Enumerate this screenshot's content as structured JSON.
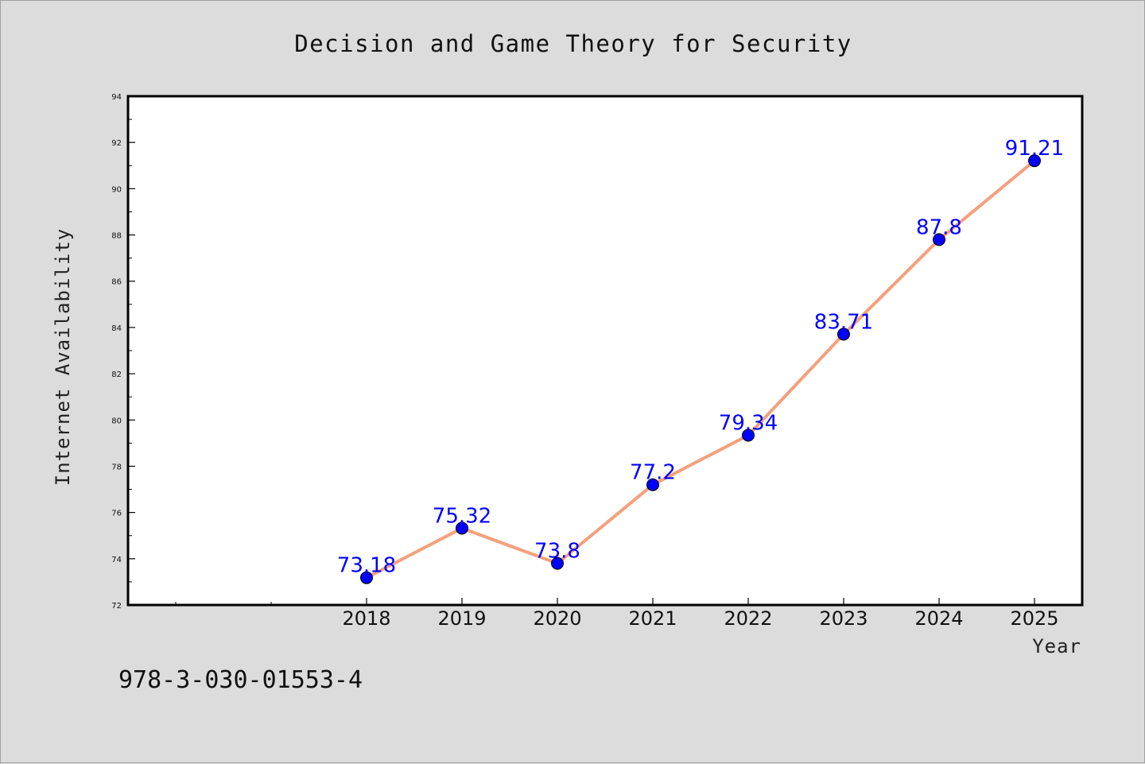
{
  "chart_data": {
    "type": "line",
    "title": "Decision and Game Theory for Security",
    "xlabel": "Year",
    "ylabel": "Internet Availability",
    "categories": [
      "2018",
      "2019",
      "2020",
      "2021",
      "2022",
      "2023",
      "2024",
      "2025"
    ],
    "series": [
      {
        "values": [
          73.18,
          75.32,
          73.8,
          77.2,
          79.34,
          83.71,
          87.8,
          91.21
        ],
        "line_color": "#f4a07c",
        "marker_color": "#0000ff"
      }
    ],
    "data_labels": [
      "73.18",
      "75.32",
      "73.8",
      "77.2",
      "79.34",
      "83.71",
      "87.8",
      "91.21"
    ],
    "ylim": [
      72,
      94
    ],
    "yticks": [
      "72",
      "74",
      "76",
      "78",
      "80",
      "82",
      "84",
      "86",
      "88",
      "90",
      "92",
      "94"
    ],
    "grid": false,
    "legend": "none"
  },
  "footer": {
    "isbn": "978-3-030-01553-4"
  }
}
